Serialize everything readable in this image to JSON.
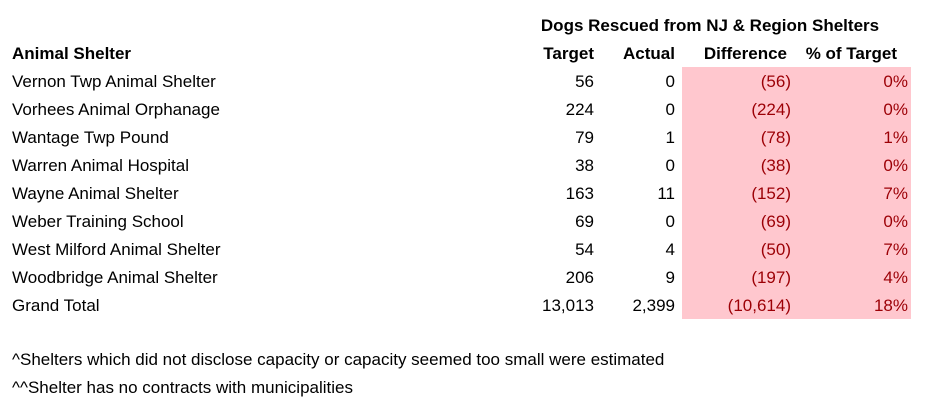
{
  "title": "Dogs Rescued from NJ & Region Shelters",
  "headers": {
    "shelter": "Animal Shelter",
    "target": "Target",
    "actual": "Actual",
    "difference": "Difference",
    "pct": "% of Target"
  },
  "rows": [
    {
      "name": "Vernon Twp Animal Shelter",
      "target": "56",
      "actual": "0",
      "difference": "(56)",
      "pct": "0%"
    },
    {
      "name": "Vorhees Animal Orphanage",
      "target": "224",
      "actual": "0",
      "difference": "(224)",
      "pct": "0%"
    },
    {
      "name": "Wantage Twp Pound",
      "target": "79",
      "actual": "1",
      "difference": "(78)",
      "pct": "1%"
    },
    {
      "name": "Warren Animal Hospital",
      "target": "38",
      "actual": "0",
      "difference": "(38)",
      "pct": "0%"
    },
    {
      "name": "Wayne Animal Shelter",
      "target": "163",
      "actual": "11",
      "difference": "(152)",
      "pct": "7%"
    },
    {
      "name": "Weber Training School",
      "target": "69",
      "actual": "0",
      "difference": "(69)",
      "pct": "0%"
    },
    {
      "name": "West Milford Animal Shelter",
      "target": "54",
      "actual": "4",
      "difference": "(50)",
      "pct": "7%"
    },
    {
      "name": "Woodbridge Animal Shelter",
      "target": "206",
      "actual": "9",
      "difference": "(197)",
      "pct": "4%"
    },
    {
      "name": "Grand Total",
      "target": "13,013",
      "actual": "2,399",
      "difference": "(10,614)",
      "pct": "18%"
    }
  ],
  "notes": [
    "^Shelters which did not disclose capacity or capacity seemed too small were estimated",
    "^^Shelter has no contracts with municipalities"
  ],
  "colors": {
    "highlight_fill": "#ffc7ce",
    "highlight_text": "#9c0006"
  }
}
